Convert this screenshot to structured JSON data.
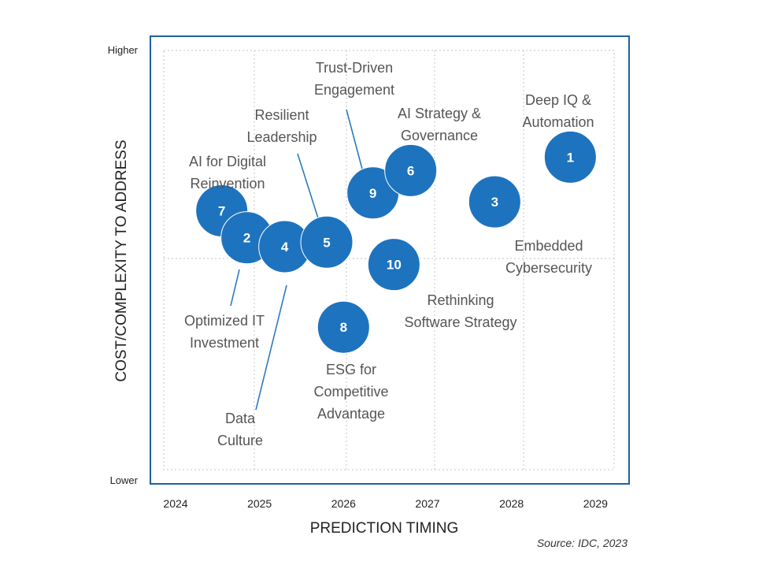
{
  "chart_data": {
    "type": "scatter",
    "title": "",
    "xlabel": "PREDICTION TIMING",
    "ylabel": "COST/COMPLEXITY TO ADDRESS",
    "xlim": [
      2023.7,
      2029.4
    ],
    "ylim": [
      0,
      1
    ],
    "x_ticks": [
      "2024",
      "2025",
      "2026",
      "2027",
      "2028",
      "2029"
    ],
    "y_ticks": {
      "top": "Higher",
      "bottom": "Lower"
    },
    "grid": true,
    "bubble_color": "#1e73be",
    "points": [
      {
        "id": "1",
        "x": 2028.7,
        "y": 0.73,
        "label": [
          "Deep IQ &",
          "Automation"
        ]
      },
      {
        "id": "2",
        "x": 2024.85,
        "y": 0.55,
        "label": [
          "Optimized IT",
          "Investment"
        ]
      },
      {
        "id": "3",
        "x": 2027.8,
        "y": 0.63,
        "label": [
          "Embedded",
          "Cybersecurity"
        ]
      },
      {
        "id": "4",
        "x": 2025.3,
        "y": 0.53,
        "label": [
          "Data",
          "Culture"
        ]
      },
      {
        "id": "5",
        "x": 2025.8,
        "y": 0.54,
        "label": [
          "Resilient",
          "Leadership"
        ]
      },
      {
        "id": "6",
        "x": 2026.8,
        "y": 0.7,
        "label": [
          "AI Strategy &",
          "Governance"
        ]
      },
      {
        "id": "7",
        "x": 2024.55,
        "y": 0.61,
        "label": [
          "AI for Digital",
          "Reinvention"
        ]
      },
      {
        "id": "8",
        "x": 2026.0,
        "y": 0.35,
        "label": [
          "ESG for",
          "Competitive",
          "Advantage"
        ]
      },
      {
        "id": "9",
        "x": 2026.35,
        "y": 0.65,
        "label": [
          "Trust-Driven",
          "Engagement"
        ]
      },
      {
        "id": "10",
        "x": 2026.6,
        "y": 0.49,
        "label": [
          "Rethinking",
          "Software Strategy"
        ]
      }
    ],
    "source": "Source: IDC, 2023"
  }
}
